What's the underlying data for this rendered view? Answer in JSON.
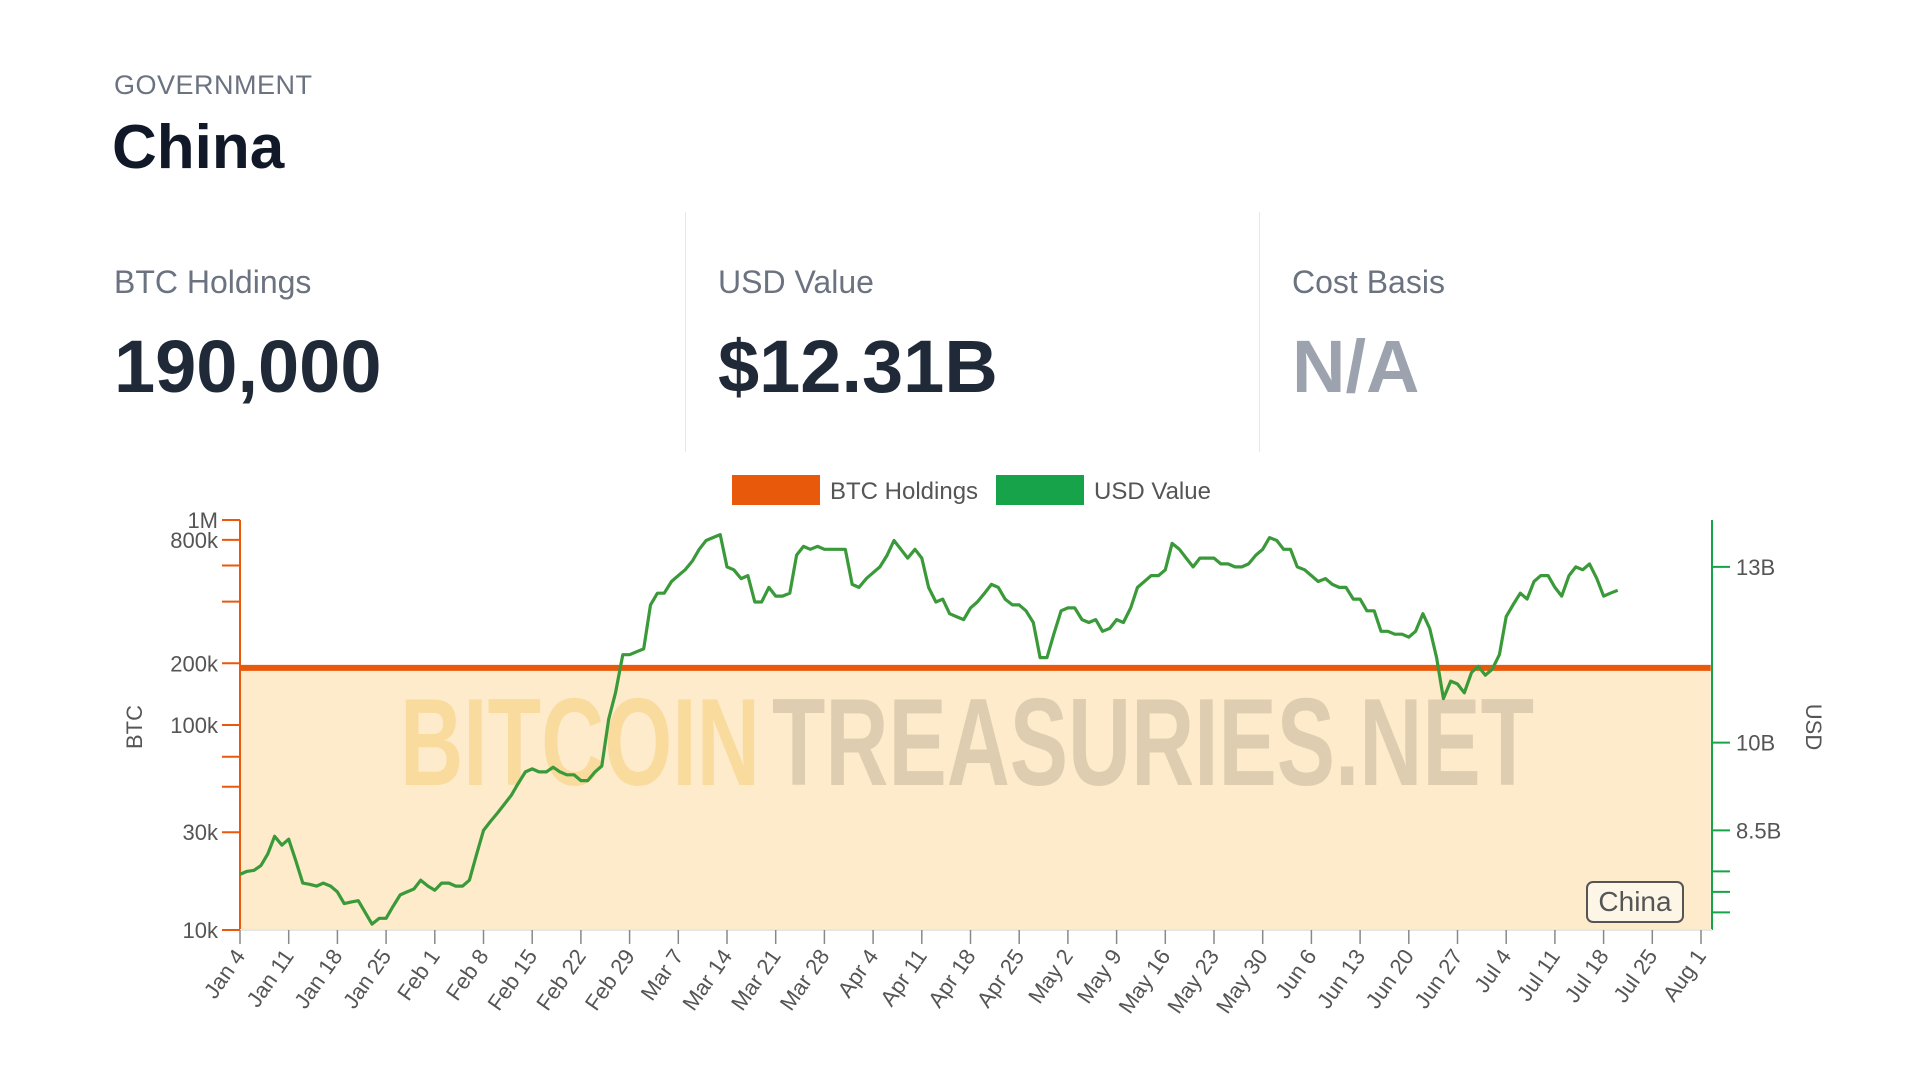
{
  "header": {
    "category": "GOVERNMENT",
    "title": "China"
  },
  "stats": [
    {
      "label": "BTC Holdings",
      "value": "190,000",
      "muted": false
    },
    {
      "label": "USD Value",
      "value": "$12.31B",
      "muted": false
    },
    {
      "label": "Cost Basis",
      "value": "N/A",
      "muted": true
    }
  ],
  "watermark": {
    "part1": "BITCOIN",
    "part2": "TREASURIES.NET"
  },
  "colors": {
    "btc": "#e8590c",
    "usd": "#16a34a",
    "fill": "#fdebcb",
    "usd_line": "#3a9a3a"
  },
  "chart_data": {
    "type": "line",
    "legend": [
      {
        "name": "BTC Holdings",
        "color": "#e8590c"
      },
      {
        "name": "USD Value",
        "color": "#16a34a"
      }
    ],
    "legend_position": "top-center",
    "x_tick_labels": [
      "Jan 4",
      "Jan 11",
      "Jan 18",
      "Jan 25",
      "Feb 1",
      "Feb 8",
      "Feb 15",
      "Feb 22",
      "Feb 29",
      "Mar 7",
      "Mar 14",
      "Mar 21",
      "Mar 28",
      "Apr 4",
      "Apr 11",
      "Apr 18",
      "Apr 25",
      "May 2",
      "May 9",
      "May 16",
      "May 23",
      "May 30",
      "Jun 6",
      "Jun 13",
      "Jun 20",
      "Jun 27",
      "Jul 4",
      "Jul 11",
      "Jul 18",
      "Jul 25",
      "Aug 1"
    ],
    "y_left": {
      "label": "BTC",
      "scale": "log",
      "range": [
        10000,
        1000000
      ],
      "ticks": [
        {
          "value": 10000,
          "label": "10k"
        },
        {
          "value": 30000,
          "label": "30k"
        },
        {
          "value": 100000,
          "label": "100k"
        },
        {
          "value": 200000,
          "label": "200k"
        },
        {
          "value": 800000,
          "label": "800k"
        },
        {
          "value": 1000000,
          "label": "1M"
        }
      ],
      "minor_ticks": [
        50000,
        70000,
        400000,
        600000
      ]
    },
    "y_right": {
      "label": "USD",
      "scale": "linear",
      "range": [
        6800000000,
        13800000000
      ],
      "ticks": [
        {
          "value": 8500000000,
          "label": "8.5B"
        },
        {
          "value": 10000000000,
          "label": "10B"
        },
        {
          "value": 13000000000,
          "label": "13B"
        }
      ],
      "minor_ticks": [
        7100000000,
        7450000000,
        7800000000
      ]
    },
    "series": [
      {
        "name": "BTC Holdings",
        "axis": "left",
        "x_start": 0,
        "x_end": 30.2,
        "values": [
          190000,
          190000
        ]
      },
      {
        "name": "USD Value",
        "axis": "right",
        "points": [
          [
            0,
            7.75
          ],
          [
            0.14,
            7.8
          ],
          [
            0.29,
            7.82
          ],
          [
            0.43,
            7.9
          ],
          [
            0.57,
            8.1
          ],
          [
            0.71,
            8.4
          ],
          [
            0.86,
            8.25
          ],
          [
            1,
            8.35
          ],
          [
            1.14,
            8.0
          ],
          [
            1.29,
            7.6
          ],
          [
            1.43,
            7.58
          ],
          [
            1.57,
            7.55
          ],
          [
            1.71,
            7.6
          ],
          [
            1.86,
            7.55
          ],
          [
            2,
            7.45
          ],
          [
            2.14,
            7.25
          ],
          [
            2.29,
            7.28
          ],
          [
            2.43,
            7.3
          ],
          [
            2.57,
            7.1
          ],
          [
            2.71,
            6.9
          ],
          [
            2.86,
            7.0
          ],
          [
            3,
            7.0
          ],
          [
            3.14,
            7.2
          ],
          [
            3.29,
            7.4
          ],
          [
            3.43,
            7.45
          ],
          [
            3.57,
            7.5
          ],
          [
            3.71,
            7.65
          ],
          [
            3.86,
            7.55
          ],
          [
            4,
            7.48
          ],
          [
            4.14,
            7.6
          ],
          [
            4.29,
            7.6
          ],
          [
            4.43,
            7.55
          ],
          [
            4.57,
            7.55
          ],
          [
            4.71,
            7.65
          ],
          [
            4.86,
            8.1
          ],
          [
            5,
            8.5
          ],
          [
            5.14,
            8.65
          ],
          [
            5.29,
            8.8
          ],
          [
            5.43,
            8.95
          ],
          [
            5.57,
            9.1
          ],
          [
            5.71,
            9.3
          ],
          [
            5.86,
            9.5
          ],
          [
            6,
            9.55
          ],
          [
            6.14,
            9.5
          ],
          [
            6.29,
            9.5
          ],
          [
            6.43,
            9.58
          ],
          [
            6.57,
            9.5
          ],
          [
            6.71,
            9.45
          ],
          [
            6.86,
            9.45
          ],
          [
            7,
            9.35
          ],
          [
            7.14,
            9.35
          ],
          [
            7.29,
            9.5
          ],
          [
            7.43,
            9.6
          ],
          [
            7.57,
            10.4
          ],
          [
            7.71,
            10.85
          ],
          [
            7.86,
            11.5
          ],
          [
            8,
            11.5
          ],
          [
            8.14,
            11.55
          ],
          [
            8.29,
            11.6
          ],
          [
            8.43,
            12.35
          ],
          [
            8.57,
            12.55
          ],
          [
            8.71,
            12.55
          ],
          [
            8.86,
            12.75
          ],
          [
            9,
            12.85
          ],
          [
            9.14,
            12.95
          ],
          [
            9.29,
            13.1
          ],
          [
            9.43,
            13.3
          ],
          [
            9.57,
            13.45
          ],
          [
            9.71,
            13.5
          ],
          [
            9.86,
            13.55
          ],
          [
            10,
            13.0
          ],
          [
            10.14,
            12.95
          ],
          [
            10.29,
            12.8
          ],
          [
            10.43,
            12.85
          ],
          [
            10.57,
            12.4
          ],
          [
            10.71,
            12.4
          ],
          [
            10.86,
            12.65
          ],
          [
            11,
            12.5
          ],
          [
            11.14,
            12.5
          ],
          [
            11.29,
            12.55
          ],
          [
            11.43,
            13.2
          ],
          [
            11.57,
            13.35
          ],
          [
            11.71,
            13.3
          ],
          [
            11.86,
            13.35
          ],
          [
            12,
            13.3
          ],
          [
            12.14,
            13.3
          ],
          [
            12.29,
            13.3
          ],
          [
            12.43,
            13.3
          ],
          [
            12.57,
            12.7
          ],
          [
            12.71,
            12.65
          ],
          [
            12.86,
            12.8
          ],
          [
            13,
            12.9
          ],
          [
            13.14,
            13.0
          ],
          [
            13.29,
            13.2
          ],
          [
            13.43,
            13.45
          ],
          [
            13.57,
            13.3
          ],
          [
            13.71,
            13.15
          ],
          [
            13.86,
            13.3
          ],
          [
            14,
            13.15
          ],
          [
            14.14,
            12.65
          ],
          [
            14.29,
            12.4
          ],
          [
            14.43,
            12.45
          ],
          [
            14.57,
            12.2
          ],
          [
            14.71,
            12.15
          ],
          [
            14.86,
            12.1
          ],
          [
            15,
            12.3
          ],
          [
            15.14,
            12.4
          ],
          [
            15.29,
            12.55
          ],
          [
            15.43,
            12.7
          ],
          [
            15.57,
            12.65
          ],
          [
            15.71,
            12.45
          ],
          [
            15.86,
            12.35
          ],
          [
            16,
            12.35
          ],
          [
            16.14,
            12.25
          ],
          [
            16.29,
            12.05
          ],
          [
            16.43,
            11.45
          ],
          [
            16.57,
            11.45
          ],
          [
            16.71,
            11.85
          ],
          [
            16.86,
            12.25
          ],
          [
            17,
            12.3
          ],
          [
            17.14,
            12.3
          ],
          [
            17.29,
            12.1
          ],
          [
            17.43,
            12.05
          ],
          [
            17.57,
            12.1
          ],
          [
            17.71,
            11.9
          ],
          [
            17.86,
            11.95
          ],
          [
            18,
            12.1
          ],
          [
            18.14,
            12.05
          ],
          [
            18.29,
            12.3
          ],
          [
            18.43,
            12.65
          ],
          [
            18.57,
            12.75
          ],
          [
            18.71,
            12.85
          ],
          [
            18.86,
            12.85
          ],
          [
            19,
            12.95
          ],
          [
            19.14,
            13.4
          ],
          [
            19.29,
            13.3
          ],
          [
            19.43,
            13.15
          ],
          [
            19.57,
            13.0
          ],
          [
            19.71,
            13.15
          ],
          [
            19.86,
            13.15
          ],
          [
            20,
            13.15
          ],
          [
            20.14,
            13.05
          ],
          [
            20.29,
            13.05
          ],
          [
            20.43,
            13.0
          ],
          [
            20.57,
            13.0
          ],
          [
            20.71,
            13.05
          ],
          [
            20.86,
            13.2
          ],
          [
            21,
            13.3
          ],
          [
            21.14,
            13.5
          ],
          [
            21.29,
            13.45
          ],
          [
            21.43,
            13.3
          ],
          [
            21.57,
            13.3
          ],
          [
            21.71,
            13.0
          ],
          [
            21.86,
            12.95
          ],
          [
            22,
            12.85
          ],
          [
            22.14,
            12.75
          ],
          [
            22.29,
            12.8
          ],
          [
            22.43,
            12.7
          ],
          [
            22.57,
            12.65
          ],
          [
            22.71,
            12.65
          ],
          [
            22.86,
            12.45
          ],
          [
            23,
            12.45
          ],
          [
            23.14,
            12.25
          ],
          [
            23.29,
            12.25
          ],
          [
            23.43,
            11.9
          ],
          [
            23.57,
            11.9
          ],
          [
            23.71,
            11.85
          ],
          [
            23.86,
            11.85
          ],
          [
            24,
            11.8
          ],
          [
            24.14,
            11.9
          ],
          [
            24.29,
            12.2
          ],
          [
            24.43,
            11.95
          ],
          [
            24.57,
            11.45
          ],
          [
            24.71,
            10.75
          ],
          [
            24.86,
            11.05
          ],
          [
            25,
            11.0
          ],
          [
            25.14,
            10.85
          ],
          [
            25.29,
            11.2
          ],
          [
            25.43,
            11.3
          ],
          [
            25.57,
            11.15
          ],
          [
            25.71,
            11.25
          ],
          [
            25.86,
            11.5
          ],
          [
            26,
            12.15
          ],
          [
            26.14,
            12.35
          ],
          [
            26.29,
            12.55
          ],
          [
            26.43,
            12.45
          ],
          [
            26.57,
            12.75
          ],
          [
            26.71,
            12.85
          ],
          [
            26.86,
            12.85
          ],
          [
            27,
            12.65
          ],
          [
            27.14,
            12.5
          ],
          [
            27.29,
            12.85
          ],
          [
            27.43,
            13.0
          ],
          [
            27.57,
            12.95
          ],
          [
            27.71,
            13.05
          ],
          [
            27.86,
            12.8
          ],
          [
            28,
            12.5
          ],
          [
            28.14,
            12.55
          ],
          [
            28.29,
            12.6
          ]
        ]
      }
    ]
  }
}
